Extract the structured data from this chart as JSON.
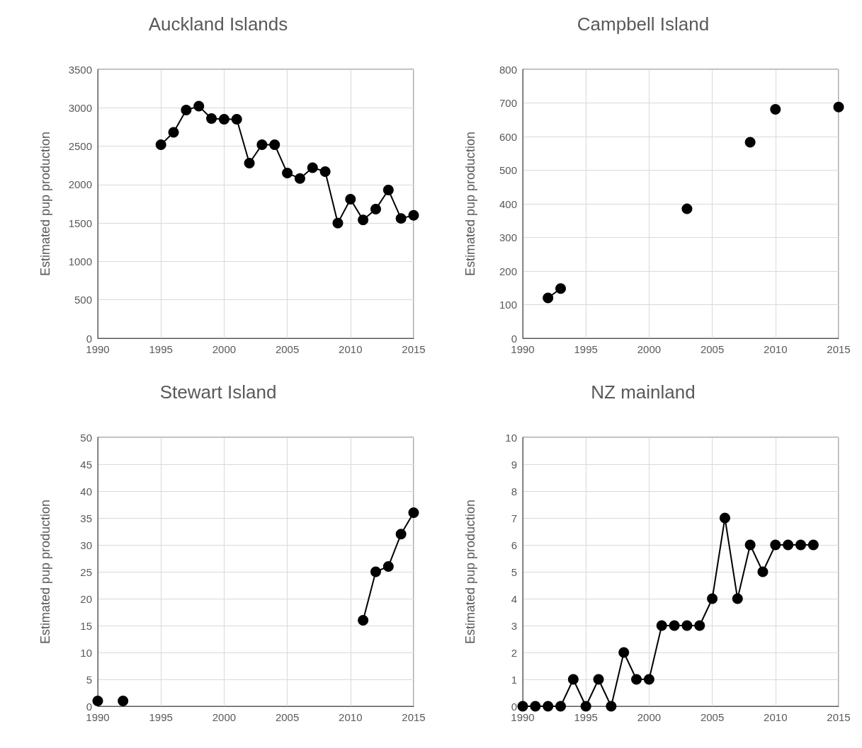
{
  "chart_data": [
    {
      "type": "line",
      "title": "Auckland Islands",
      "ylabel": "Estimated pup production",
      "color": "#000000",
      "marker": "circle",
      "grid": true,
      "x": [
        1995,
        1996,
        1997,
        1998,
        1999,
        2000,
        2001,
        2002,
        2003,
        2004,
        2005,
        2006,
        2007,
        2008,
        2009,
        2010,
        2011,
        2012,
        2013,
        2014,
        2015
      ],
      "values": [
        2520,
        2680,
        2970,
        3020,
        2860,
        2850,
        2850,
        2280,
        2520,
        2520,
        2150,
        2080,
        2220,
        2170,
        1500,
        1810,
        1540,
        1680,
        1930,
        1560,
        1600
      ],
      "xlim": [
        1990,
        2015
      ],
      "xticks": [
        1990,
        1995,
        2000,
        2005,
        2010,
        2015
      ],
      "ylim": [
        0,
        3500
      ],
      "yticks": [
        0,
        500,
        1000,
        1500,
        2000,
        2500,
        3000,
        3500
      ]
    },
    {
      "type": "line",
      "title": "Campbell Island",
      "ylabel": "Estimated pup production",
      "color": "#000000",
      "marker": "circle",
      "grid": true,
      "x": [
        1992,
        1993,
        1994,
        1995,
        1996,
        1997,
        1998,
        1999,
        2000,
        2001,
        2002,
        2003,
        2004,
        2005,
        2006,
        2007,
        2008,
        2009,
        2010,
        2011,
        2012,
        2013,
        2014,
        2015
      ],
      "values": [
        120,
        148,
        null,
        null,
        null,
        null,
        null,
        null,
        null,
        null,
        null,
        385,
        null,
        null,
        null,
        null,
        583,
        null,
        681,
        null,
        null,
        null,
        null,
        688
      ],
      "xlim": [
        1990,
        2015
      ],
      "xticks": [
        1990,
        1995,
        2000,
        2005,
        2010,
        2015
      ],
      "ylim": [
        0,
        800
      ],
      "yticks": [
        0,
        100,
        200,
        300,
        400,
        500,
        600,
        700,
        800
      ]
    },
    {
      "type": "line",
      "title": "Stewart Island",
      "ylabel": "Estimated pup production",
      "color": "#000000",
      "marker": "circle",
      "grid": true,
      "x": [
        1990,
        1991,
        1992,
        1993,
        1994,
        1995,
        1996,
        1997,
        1998,
        1999,
        2000,
        2001,
        2002,
        2003,
        2004,
        2005,
        2006,
        2007,
        2008,
        2009,
        2010,
        2011,
        2012,
        2013,
        2014,
        2015
      ],
      "values": [
        1,
        null,
        1,
        null,
        null,
        null,
        null,
        null,
        null,
        null,
        null,
        null,
        null,
        null,
        null,
        null,
        null,
        null,
        null,
        null,
        null,
        16,
        25,
        26,
        32,
        36
      ],
      "xlim": [
        1990,
        2015
      ],
      "xticks": [
        1990,
        1995,
        2000,
        2005,
        2010,
        2015
      ],
      "ylim": [
        0,
        50
      ],
      "yticks": [
        0,
        5,
        10,
        15,
        20,
        25,
        30,
        35,
        40,
        45,
        50
      ]
    },
    {
      "type": "line",
      "title": "NZ mainland",
      "ylabel": "Estimated pup production",
      "color": "#000000",
      "marker": "circle",
      "grid": true,
      "x": [
        1990,
        1991,
        1992,
        1993,
        1994,
        1995,
        1996,
        1997,
        1998,
        1999,
        2000,
        2001,
        2002,
        2003,
        2004,
        2005,
        2006,
        2007,
        2008,
        2009,
        2010,
        2011,
        2012,
        2013
      ],
      "values": [
        0,
        0,
        0,
        0,
        1,
        0,
        1,
        0,
        2,
        1,
        1,
        3,
        3,
        3,
        3,
        4,
        7,
        4,
        6,
        5,
        6,
        6,
        6,
        6
      ],
      "xlim": [
        1990,
        2015
      ],
      "xticks": [
        1990,
        1995,
        2000,
        2005,
        2010,
        2015
      ],
      "ylim": [
        0,
        10
      ],
      "yticks": [
        0,
        1,
        2,
        3,
        4,
        5,
        6,
        7,
        8,
        9,
        10
      ]
    }
  ]
}
